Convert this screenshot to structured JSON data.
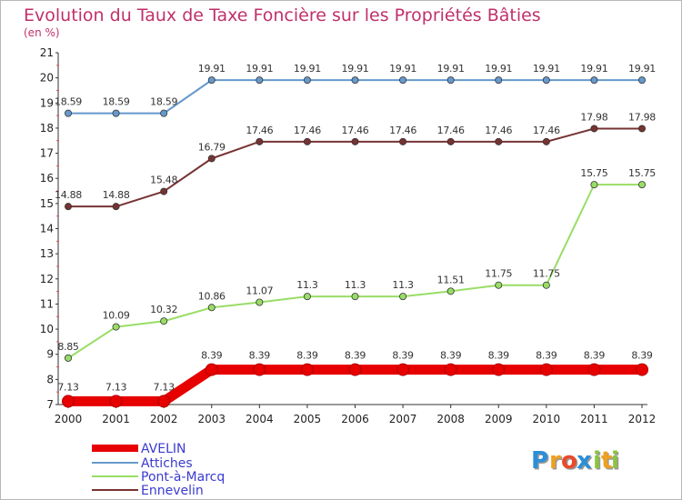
{
  "chart_data": {
    "type": "line",
    "title": "Evolution du Taux de Taxe Foncière sur les Propriétés Bâties",
    "subtitle": "(en %)",
    "x": [
      "2000",
      "2001",
      "2002",
      "2003",
      "2004",
      "2005",
      "2006",
      "2007",
      "2008",
      "2009",
      "2010",
      "2011",
      "2012"
    ],
    "ylim": [
      7,
      21
    ],
    "yticks": [
      7,
      8,
      9,
      10,
      11,
      12,
      13,
      14,
      15,
      16,
      17,
      18,
      19,
      20,
      21
    ],
    "series": [
      {
        "name": "AVELIN",
        "color": "#e60000",
        "values": [
          7.13,
          7.13,
          7.13,
          8.39,
          8.39,
          8.39,
          8.39,
          8.39,
          8.39,
          8.39,
          8.39,
          8.39,
          8.39
        ],
        "labels": [
          "7.13",
          "7.13",
          "7.13",
          "8.39",
          "8.39",
          "8.39",
          "8.39",
          "8.39",
          "8.39",
          "8.39",
          "8.39",
          "8.39",
          "8.39"
        ]
      },
      {
        "name": "Attiches",
        "color": "#6699cc",
        "values": [
          18.59,
          18.59,
          18.59,
          19.91,
          19.91,
          19.91,
          19.91,
          19.91,
          19.91,
          19.91,
          19.91,
          19.91,
          19.91
        ],
        "labels": [
          "18.59",
          "18.59",
          "18.59",
          "19.91",
          "19.91",
          "19.91",
          "19.91",
          "19.91",
          "19.91",
          "19.91",
          "19.91",
          "19.91",
          "19.91"
        ]
      },
      {
        "name": "Pont-à-Marcq",
        "color": "#99dd66",
        "values": [
          8.85,
          10.09,
          10.32,
          10.86,
          11.07,
          11.3,
          11.3,
          11.3,
          11.51,
          11.75,
          11.75,
          15.75,
          15.75
        ],
        "labels": [
          "8.85",
          "10.09",
          "10.32",
          "10.86",
          "11.07",
          "11.3",
          "11.3",
          "11.3",
          "11.51",
          "11.75",
          "11.75",
          "15.75",
          "15.75"
        ]
      },
      {
        "name": "Ennevelin",
        "color": "#773333",
        "values": [
          14.88,
          14.88,
          15.48,
          16.79,
          17.46,
          17.46,
          17.46,
          17.46,
          17.46,
          17.46,
          17.46,
          17.98,
          17.98
        ],
        "labels": [
          "14.88",
          "14.88",
          "15.48",
          "16.79",
          "17.46",
          "17.46",
          "17.46",
          "17.46",
          "17.46",
          "17.46",
          "17.46",
          "17.98",
          "17.98"
        ]
      }
    ]
  },
  "logo": {
    "text": "Proxiti",
    "letters": [
      "P",
      "r",
      "o",
      "x",
      "i",
      "t",
      "i"
    ],
    "colors": [
      "#2a8fd8",
      "#f0a020",
      "#e84b2a",
      "#2a8fd8",
      "#8bc43f",
      "#f0a020",
      "#8bc43f"
    ]
  }
}
